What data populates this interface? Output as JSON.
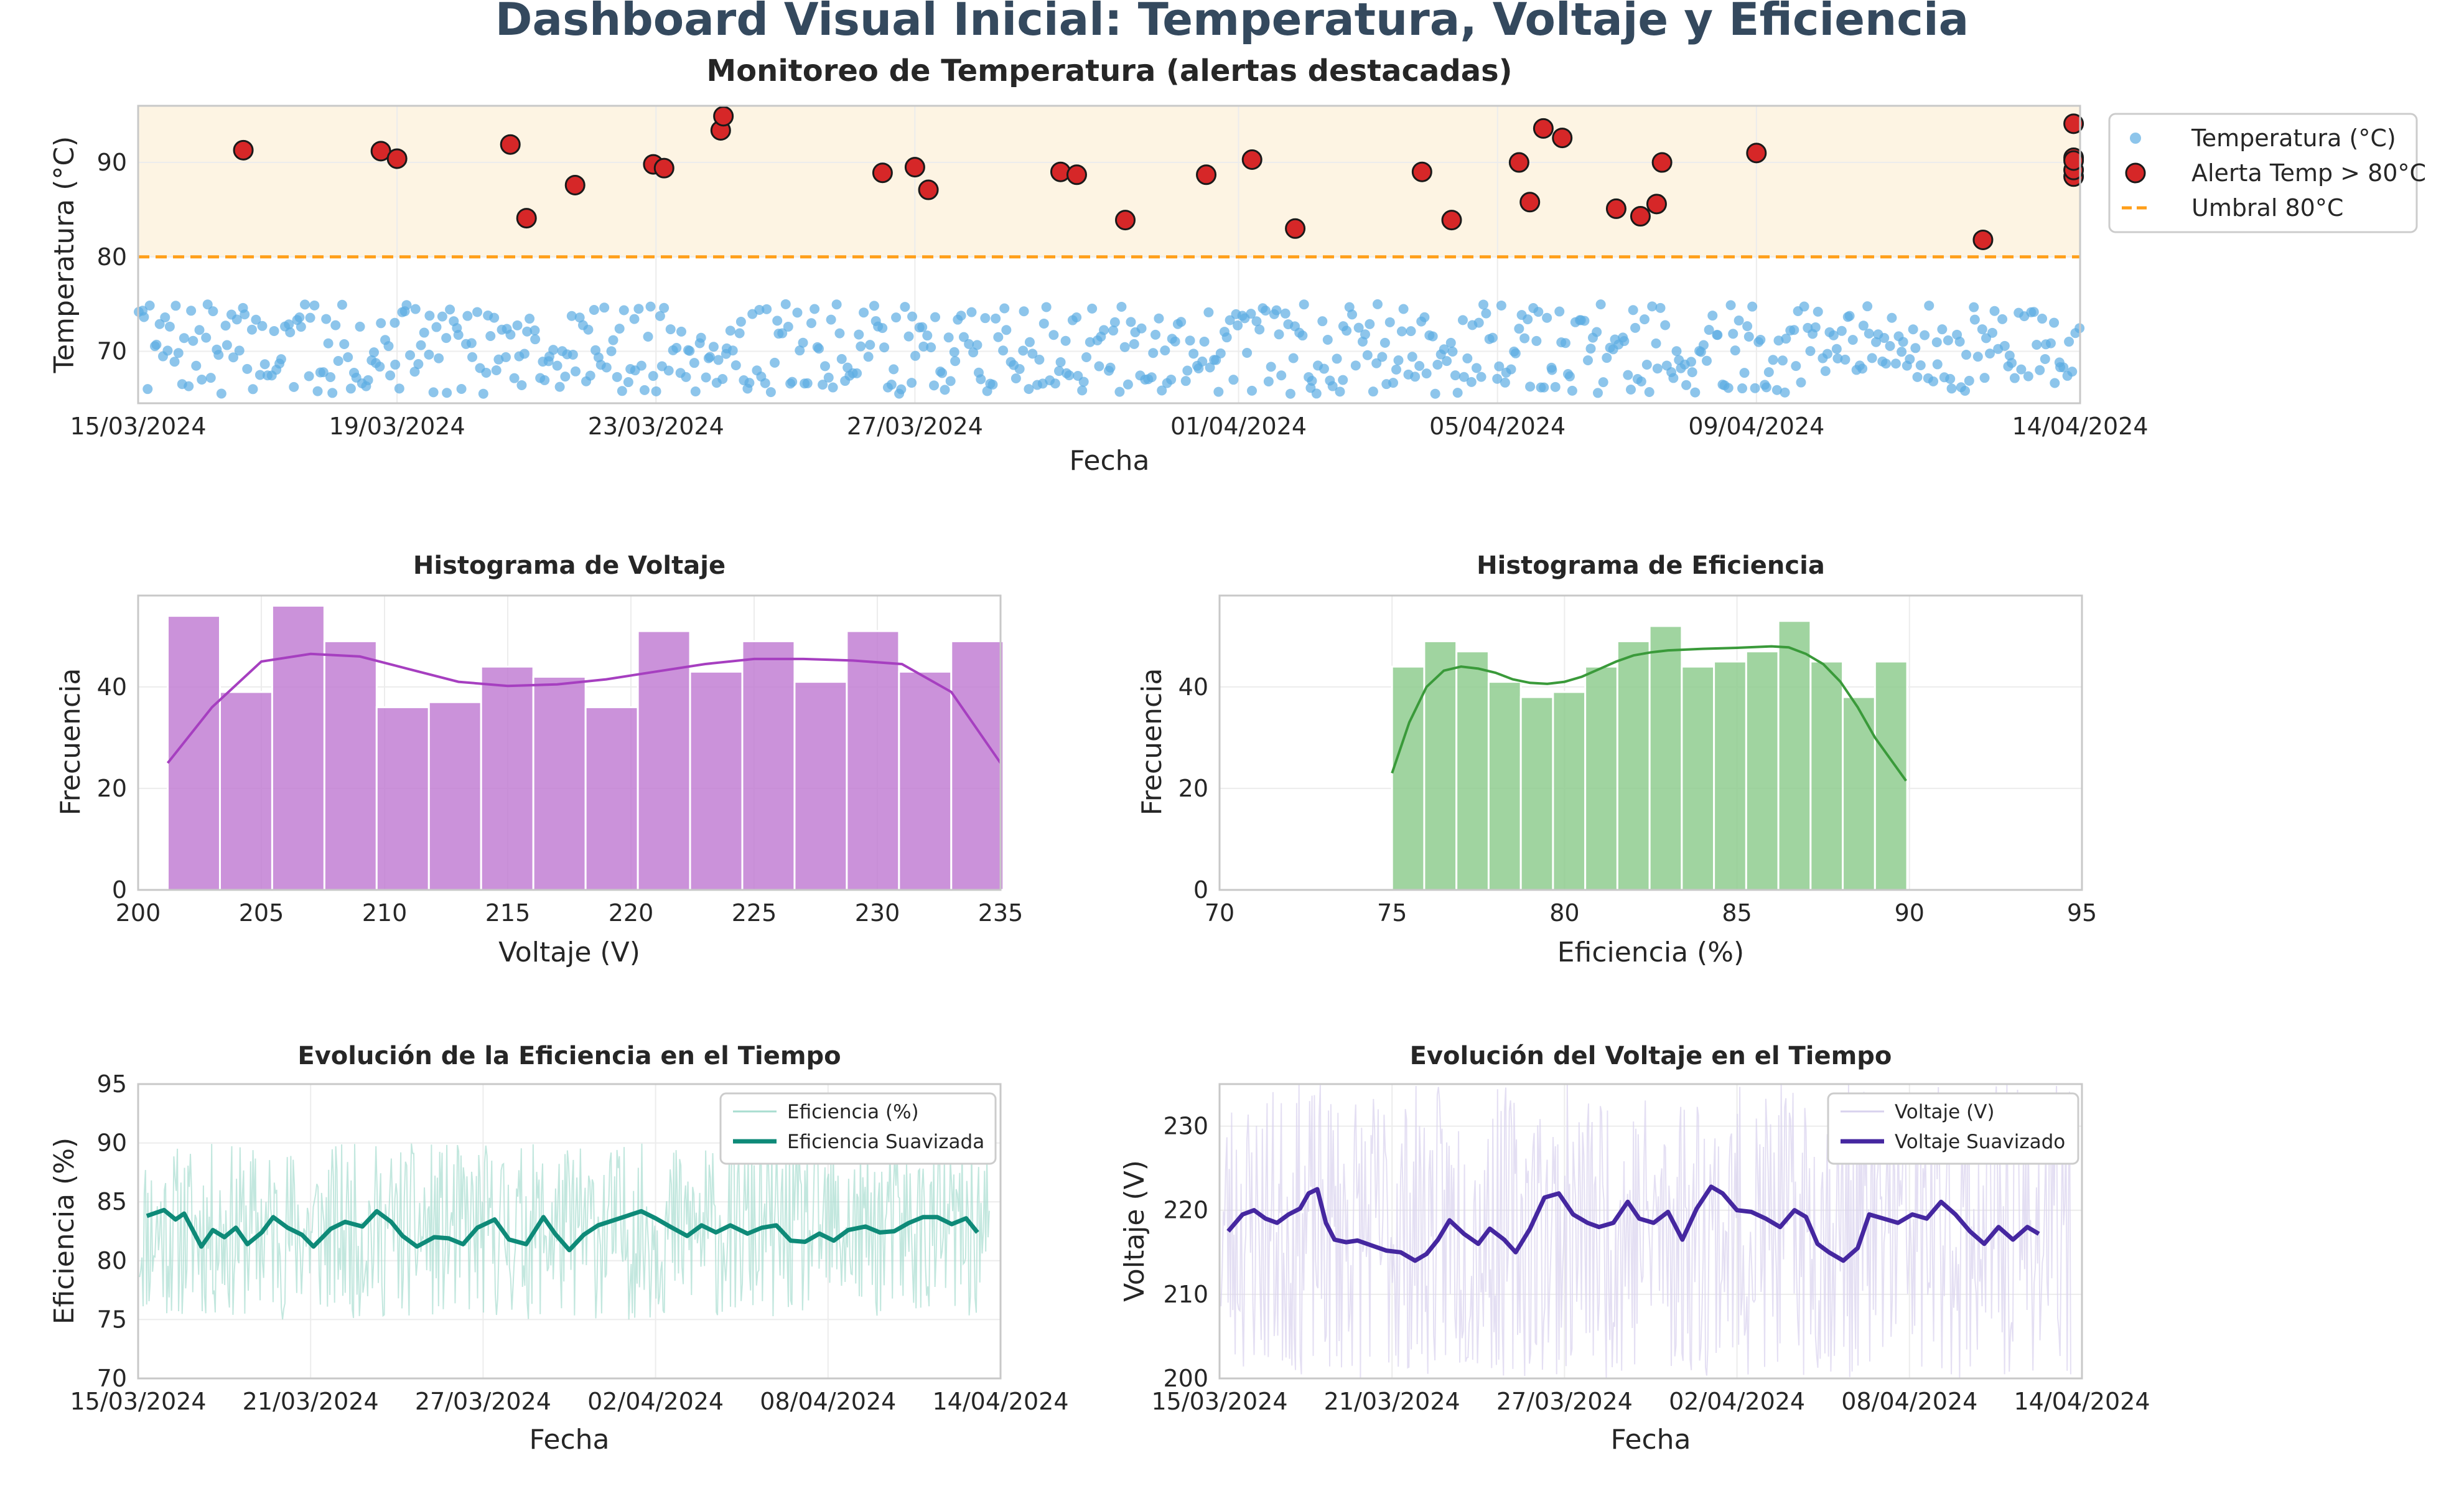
{
  "title": "Dashboard Visual Inicial: Temperatura, Voltaje y Eficiencia",
  "colors": {
    "temperature": "#5dade2",
    "alert": "#d62728",
    "threshold": "#ff9f1a",
    "alert_zone": "#fdf4e3",
    "voltage_hist": "#c27fd4",
    "voltage_kde": "#a63fc0",
    "efficiency_hist": "#8fcc8f",
    "efficiency_kde": "#3a9a3a",
    "efficiency_raw": "#a8ddd0",
    "efficiency_smooth": "#0e8a78",
    "voltage_raw": "#d8d2ee",
    "voltage_smooth": "#4527a0"
  },
  "chart_data": [
    {
      "id": "temperature",
      "type": "scatter",
      "title": "Monitoreo de Temperatura (alertas destacadas)",
      "xlabel": "Fecha",
      "ylabel": "Temperatura (°C)",
      "xlim": [
        "2024-03-15",
        "2024-04-14"
      ],
      "ylim": [
        64.5,
        96
      ],
      "yticks": [
        70,
        80,
        90
      ],
      "xticks": [
        "15/03/2024",
        "19/03/2024",
        "23/03/2024",
        "27/03/2024",
        "01/04/2024",
        "05/04/2024",
        "09/04/2024",
        "14/04/2024"
      ],
      "threshold": 80,
      "alert_zone": [
        80,
        96
      ],
      "legend": {
        "position": "outside-right",
        "entries": [
          "Temperatura (°C)",
          "Alerta Temp > 80°C",
          "Umbral 80°C"
        ]
      },
      "normal_range": [
        65.5,
        75
      ],
      "normal_count": 680,
      "alerts": [
        {
          "x": "2024-03-16 15:00",
          "y": 91.3
        },
        {
          "x": "2024-03-18 18:00",
          "y": 91.2
        },
        {
          "x": "2024-03-19 00:00",
          "y": 90.4
        },
        {
          "x": "2024-03-20 18:00",
          "y": 91.9
        },
        {
          "x": "2024-03-21 00:00",
          "y": 84.1
        },
        {
          "x": "2024-03-21 18:00",
          "y": 87.6
        },
        {
          "x": "2024-03-22 23:00",
          "y": 89.8
        },
        {
          "x": "2024-03-23 03:00",
          "y": 89.4
        },
        {
          "x": "2024-03-24 00:00",
          "y": 93.4
        },
        {
          "x": "2024-03-24 01:00",
          "y": 94.9
        },
        {
          "x": "2024-03-26 12:00",
          "y": 88.9
        },
        {
          "x": "2024-03-27 00:00",
          "y": 89.5
        },
        {
          "x": "2024-03-27 05:00",
          "y": 87.1
        },
        {
          "x": "2024-03-29 06:00",
          "y": 89.0
        },
        {
          "x": "2024-03-29 12:00",
          "y": 88.7
        },
        {
          "x": "2024-03-30 06:00",
          "y": 83.9
        },
        {
          "x": "2024-03-31 12:00",
          "y": 88.7
        },
        {
          "x": "2024-04-01 05:00",
          "y": 90.3
        },
        {
          "x": "2024-04-01 21:00",
          "y": 83.0
        },
        {
          "x": "2024-04-03 20:00",
          "y": 89.0
        },
        {
          "x": "2024-04-04 07:00",
          "y": 83.9
        },
        {
          "x": "2024-04-05 08:00",
          "y": 90.0
        },
        {
          "x": "2024-04-05 12:00",
          "y": 85.8
        },
        {
          "x": "2024-04-05 17:00",
          "y": 93.6
        },
        {
          "x": "2024-04-06 00:00",
          "y": 92.6
        },
        {
          "x": "2024-04-06 20:00",
          "y": 85.1
        },
        {
          "x": "2024-04-07 05:00",
          "y": 84.3
        },
        {
          "x": "2024-04-07 11:00",
          "y": 85.6
        },
        {
          "x": "2024-04-07 13:00",
          "y": 90.0
        },
        {
          "x": "2024-04-09 00:00",
          "y": 91.0
        },
        {
          "x": "2024-04-12 12:00",
          "y": 81.8
        },
        {
          "x": "2024-04-14 12:00",
          "y": 88.5
        },
        {
          "x": "2024-04-18 00:00",
          "y": 89.2
        },
        {
          "x": "2024-04-18 06:00",
          "y": 94.1
        },
        {
          "x": "2024-04-19 21:00",
          "y": 90.5
        },
        {
          "x": "2024-04-20 00:00",
          "y": 90.2
        }
      ]
    },
    {
      "id": "voltage_hist",
      "type": "bar",
      "title": "Histograma de Voltaje",
      "xlabel": "Voltaje (V)",
      "ylabel": "Frecuencia",
      "xlim": [
        200,
        235
      ],
      "ylim": [
        0,
        58
      ],
      "xticks": [
        200,
        205,
        210,
        215,
        220,
        225,
        230,
        235
      ],
      "yticks": [
        0,
        20,
        40
      ],
      "bin_start": 201.2,
      "bin_width": 2.12,
      "values": [
        54,
        39,
        56,
        49,
        36,
        37,
        44,
        42,
        36,
        51,
        43,
        49,
        41,
        51,
        43,
        49
      ],
      "kde": [
        [
          201.2,
          25
        ],
        [
          203,
          36
        ],
        [
          205,
          45
        ],
        [
          207,
          46.5
        ],
        [
          209,
          46
        ],
        [
          211,
          43.5
        ],
        [
          213,
          41
        ],
        [
          215,
          40.2
        ],
        [
          217,
          40.5
        ],
        [
          219,
          41.5
        ],
        [
          221,
          43
        ],
        [
          223,
          44.5
        ],
        [
          225,
          45.5
        ],
        [
          227,
          45.5
        ],
        [
          229,
          45.2
        ],
        [
          231,
          44.5
        ],
        [
          233,
          39
        ],
        [
          235,
          25
        ]
      ]
    },
    {
      "id": "efficiency_hist",
      "type": "bar",
      "title": "Histograma de Eficiencia",
      "xlabel": "Eficiencia (%)",
      "ylabel": "Frecuencia",
      "xlim": [
        70,
        95
      ],
      "ylim": [
        0,
        58
      ],
      "xticks": [
        70,
        75,
        80,
        85,
        90,
        95
      ],
      "yticks": [
        0,
        20,
        40
      ],
      "bin_start": 75,
      "bin_width": 0.9333,
      "values": [
        44,
        49,
        47,
        41,
        38,
        39,
        44,
        49,
        52,
        44,
        45,
        47,
        53,
        45,
        38,
        45
      ],
      "kde": [
        [
          75,
          23
        ],
        [
          75.5,
          33
        ],
        [
          76,
          40
        ],
        [
          76.5,
          43.2
        ],
        [
          77,
          44
        ],
        [
          77.5,
          43.6
        ],
        [
          78,
          42.8
        ],
        [
          78.5,
          41.5
        ],
        [
          79,
          40.8
        ],
        [
          79.5,
          40.6
        ],
        [
          80,
          41
        ],
        [
          80.5,
          42
        ],
        [
          81,
          43.5
        ],
        [
          81.5,
          45
        ],
        [
          82,
          46.2
        ],
        [
          82.5,
          46.8
        ],
        [
          83,
          47.2
        ],
        [
          84,
          47.5
        ],
        [
          85,
          47.7
        ],
        [
          86,
          48
        ],
        [
          86.5,
          47.8
        ],
        [
          87,
          46.5
        ],
        [
          87.5,
          44.5
        ],
        [
          88,
          41
        ],
        [
          88.5,
          36
        ],
        [
          89,
          30
        ],
        [
          89.9,
          21.5
        ]
      ]
    },
    {
      "id": "efficiency_time",
      "type": "line",
      "title": "Evolución de la Eficiencia en el Tiempo",
      "xlabel": "Fecha",
      "ylabel": "Eficiencia (%)",
      "xlim": [
        "2024-03-15",
        "2024-04-14"
      ],
      "ylim": [
        70,
        95
      ],
      "yticks": [
        70,
        75,
        80,
        85,
        90,
        95
      ],
      "xticks": [
        "15/03/2024",
        "21/03/2024",
        "27/03/2024",
        "02/04/2024",
        "08/04/2024",
        "14/04/2024"
      ],
      "legend": {
        "position": "top-right",
        "entries": [
          "Eficiencia (%)",
          "Eficiencia Suavizada"
        ]
      },
      "raw_range": [
        75,
        90
      ],
      "smoothed": [
        [
          0.3,
          83.8
        ],
        [
          0.9,
          84.3
        ],
        [
          1.3,
          83.5
        ],
        [
          1.6,
          84
        ],
        [
          1.9,
          82.6
        ],
        [
          2.2,
          81.2
        ],
        [
          2.6,
          82.6
        ],
        [
          3.0,
          82
        ],
        [
          3.4,
          82.8
        ],
        [
          3.8,
          81.4
        ],
        [
          4.3,
          82.4
        ],
        [
          4.7,
          83.7
        ],
        [
          5.2,
          82.8
        ],
        [
          5.7,
          82.2
        ],
        [
          6.1,
          81.2
        ],
        [
          6.7,
          82.7
        ],
        [
          7.2,
          83.3
        ],
        [
          7.8,
          82.9
        ],
        [
          8.3,
          84.2
        ],
        [
          8.8,
          83.3
        ],
        [
          9.2,
          82.1
        ],
        [
          9.7,
          81.2
        ],
        [
          10.3,
          82
        ],
        [
          10.8,
          81.9
        ],
        [
          11.3,
          81.4
        ],
        [
          11.8,
          82.8
        ],
        [
          12.4,
          83.5
        ],
        [
          12.9,
          81.8
        ],
        [
          13.5,
          81.4
        ],
        [
          14.1,
          83.7
        ],
        [
          14.5,
          82.3
        ],
        [
          15.0,
          80.9
        ],
        [
          15.5,
          82.2
        ],
        [
          16.0,
          83
        ],
        [
          16.5,
          83.4
        ],
        [
          17.0,
          83.8
        ],
        [
          17.5,
          84.2
        ],
        [
          18.0,
          83.6
        ],
        [
          18.5,
          82.9
        ],
        [
          19.1,
          82.1
        ],
        [
          19.6,
          83
        ],
        [
          20.1,
          82.4
        ],
        [
          20.6,
          83
        ],
        [
          21.2,
          82.3
        ],
        [
          21.7,
          82.8
        ],
        [
          22.2,
          83
        ],
        [
          22.7,
          81.7
        ],
        [
          23.2,
          81.6
        ],
        [
          23.7,
          82.3
        ],
        [
          24.2,
          81.7
        ],
        [
          24.7,
          82.6
        ],
        [
          25.3,
          82.9
        ],
        [
          25.8,
          82.4
        ],
        [
          26.3,
          82.5
        ],
        [
          26.8,
          83.2
        ],
        [
          27.3,
          83.7
        ],
        [
          27.8,
          83.7
        ],
        [
          28.3,
          83.1
        ],
        [
          28.8,
          83.6
        ],
        [
          29.2,
          82.4
        ]
      ]
    },
    {
      "id": "voltage_time",
      "type": "line",
      "title": "Evolución del Voltaje en el Tiempo",
      "xlabel": "Fecha",
      "ylabel": "Voltaje (V)",
      "xlim": [
        "2024-03-15",
        "2024-04-14"
      ],
      "ylim": [
        200,
        235
      ],
      "yticks": [
        200,
        210,
        220,
        230
      ],
      "xticks": [
        "15/03/2024",
        "21/03/2024",
        "27/03/2024",
        "02/04/2024",
        "08/04/2024",
        "14/04/2024"
      ],
      "legend": {
        "position": "top-right",
        "entries": [
          "Voltaje (V)",
          "Voltaje Suavizado"
        ]
      },
      "raw_range": [
        200,
        235
      ],
      "smoothed": [
        [
          0.3,
          217.5
        ],
        [
          0.8,
          219.5
        ],
        [
          1.2,
          220
        ],
        [
          1.6,
          219
        ],
        [
          2.0,
          218.5
        ],
        [
          2.4,
          219.5
        ],
        [
          2.8,
          220.2
        ],
        [
          3.1,
          222
        ],
        [
          3.4,
          222.5
        ],
        [
          3.7,
          218.5
        ],
        [
          4.0,
          216.5
        ],
        [
          4.4,
          216.2
        ],
        [
          4.8,
          216.4
        ],
        [
          5.3,
          215.8
        ],
        [
          5.8,
          215.2
        ],
        [
          6.3,
          215
        ],
        [
          6.8,
          214
        ],
        [
          7.2,
          214.8
        ],
        [
          7.6,
          216.5
        ],
        [
          8.0,
          218.8
        ],
        [
          8.5,
          217.2
        ],
        [
          9.0,
          216
        ],
        [
          9.4,
          217.8
        ],
        [
          9.9,
          216.5
        ],
        [
          10.3,
          215
        ],
        [
          10.8,
          217.8
        ],
        [
          11.3,
          221.5
        ],
        [
          11.8,
          222
        ],
        [
          12.3,
          219.5
        ],
        [
          12.8,
          218.5
        ],
        [
          13.2,
          218
        ],
        [
          13.7,
          218.5
        ],
        [
          14.2,
          221
        ],
        [
          14.6,
          219
        ],
        [
          15.1,
          218.5
        ],
        [
          15.6,
          219.8
        ],
        [
          16.1,
          216.5
        ],
        [
          16.6,
          220.2
        ],
        [
          17.1,
          222.8
        ],
        [
          17.5,
          222
        ],
        [
          18.0,
          220
        ],
        [
          18.5,
          219.8
        ],
        [
          19.0,
          219
        ],
        [
          19.5,
          218
        ],
        [
          20.0,
          220
        ],
        [
          20.4,
          219.2
        ],
        [
          20.8,
          216
        ],
        [
          21.2,
          215
        ],
        [
          21.7,
          214
        ],
        [
          22.2,
          215.5
        ],
        [
          22.6,
          219.5
        ],
        [
          23.1,
          219
        ],
        [
          23.6,
          218.5
        ],
        [
          24.1,
          219.5
        ],
        [
          24.6,
          219
        ],
        [
          25.1,
          221
        ],
        [
          25.6,
          219.5
        ],
        [
          26.1,
          217.5
        ],
        [
          26.6,
          216
        ],
        [
          27.1,
          218
        ],
        [
          27.6,
          216.5
        ],
        [
          28.1,
          218
        ],
        [
          28.5,
          217.2
        ]
      ]
    }
  ]
}
